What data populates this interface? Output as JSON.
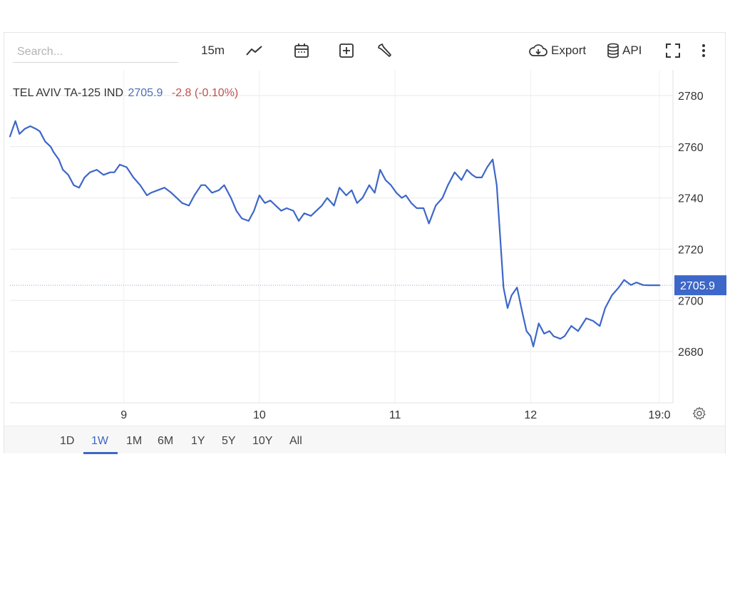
{
  "toolbar": {
    "search_placeholder": "Search...",
    "interval": "15m",
    "export_label": "Export",
    "api_label": "API"
  },
  "ticker": {
    "name": "TEL AVIV TA-125 IND",
    "last": "2705.9",
    "change": "-2.8 (-0.10%)"
  },
  "range_buttons": [
    "1D",
    "1W",
    "1M",
    "6M",
    "1Y",
    "5Y",
    "10Y",
    "All"
  ],
  "active_range": "1W",
  "chart_data": {
    "type": "line",
    "title": "TEL AVIV TA-125 IND",
    "xlabel": "",
    "ylabel": "",
    "y_ticks": [
      2680,
      2700,
      2720,
      2740,
      2760,
      2780
    ],
    "y_tick_labels": [
      "2680",
      "2700",
      "2720",
      "2740",
      "2760",
      "2780"
    ],
    "ylim": [
      2660,
      2790
    ],
    "x_tick_labels": [
      "9",
      "10",
      "11",
      "12",
      "19:0"
    ],
    "x_ticks": [
      9,
      10,
      11,
      12,
      12.95
    ],
    "xlim": [
      8.16,
      13.05
    ],
    "last_value": 2705.9,
    "last_value_label": "2705.9",
    "line_color": "#3d67c8",
    "grid": true,
    "series": [
      {
        "x": [
          8.16,
          8.2,
          8.23,
          8.27,
          8.31,
          8.35,
          8.38,
          8.42,
          8.46,
          8.48,
          8.52,
          8.55,
          8.59,
          8.63,
          8.67,
          8.71,
          8.75,
          8.8,
          8.85,
          8.9,
          8.93,
          8.97,
          9.02,
          9.07,
          9.12,
          9.17,
          9.2,
          9.25,
          9.3,
          9.35,
          9.39,
          9.43,
          9.48,
          9.52,
          9.57,
          9.6,
          9.65,
          9.7,
          9.74,
          9.79,
          9.83,
          9.87,
          9.92,
          9.96,
          10.0,
          10.04,
          10.08,
          10.12,
          10.16,
          10.2,
          10.25,
          10.29,
          10.33,
          10.38,
          10.42,
          10.46,
          10.5,
          10.55,
          10.59,
          10.64,
          10.68,
          10.72,
          10.76,
          10.81,
          10.85,
          10.89,
          10.93,
          10.97,
          11.01,
          11.05,
          11.08,
          11.12,
          11.16,
          11.21,
          11.25,
          11.3,
          11.35,
          11.39,
          11.44,
          11.49,
          11.53,
          11.57,
          11.6,
          11.64,
          11.68,
          11.72,
          11.75,
          11.8,
          11.83,
          11.86,
          11.9,
          11.94,
          11.97,
          12.0,
          12.02,
          12.06,
          12.1,
          12.14,
          12.17,
          12.22,
          12.25,
          12.3,
          12.35,
          12.41,
          12.46,
          12.51,
          12.55,
          12.6,
          12.65,
          12.69,
          12.74,
          12.78,
          12.83,
          12.87,
          12.9,
          12.95
        ],
        "y": [
          2764,
          2770,
          2765,
          2767,
          2768,
          2767,
          2766,
          2762,
          2760,
          2758,
          2755,
          2751,
          2749,
          2745,
          2744,
          2748,
          2750,
          2751,
          2749,
          2750,
          2750,
          2753,
          2752,
          2748,
          2745,
          2741,
          2742,
          2743,
          2744,
          2742,
          2740,
          2738,
          2737,
          2741,
          2745,
          2745,
          2742,
          2743,
          2745,
          2740,
          2735,
          2732,
          2731,
          2735,
          2741,
          2738,
          2739,
          2737,
          2735,
          2736,
          2735,
          2731,
          2734,
          2733,
          2735,
          2737,
          2740,
          2737,
          2744,
          2741,
          2743,
          2738,
          2740,
          2745,
          2742,
          2751,
          2747,
          2745,
          2742,
          2740,
          2741,
          2738,
          2736,
          2736,
          2730,
          2737,
          2740,
          2745,
          2750,
          2747,
          2751,
          2749,
          2748,
          2748,
          2752,
          2755,
          2745,
          2705,
          2697,
          2702,
          2705,
          2695,
          2688,
          2686,
          2682,
          2691,
          2687,
          2688,
          2686,
          2685,
          2686,
          2690,
          2688,
          2693,
          2692,
          2690,
          2697,
          2702,
          2705,
          2708,
          2706,
          2707,
          2706,
          2705.9,
          2705.9,
          2705.9
        ]
      }
    ]
  }
}
